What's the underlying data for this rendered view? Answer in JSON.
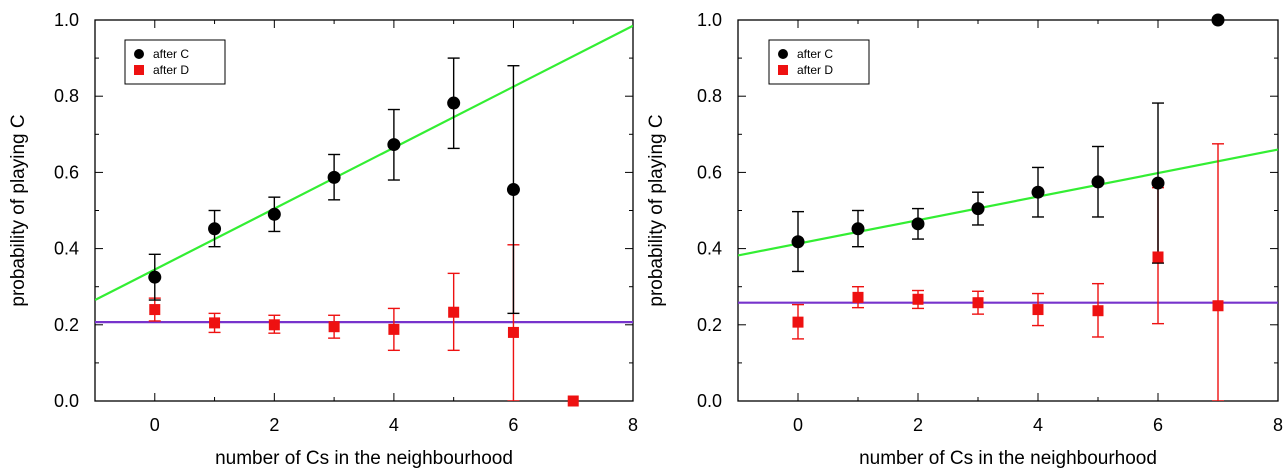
{
  "chart_data": [
    {
      "type": "scatter",
      "xlabel": "number of Cs in the neighbourhood",
      "ylabel": "probability of playing C",
      "xlim": [
        -1,
        8
      ],
      "ylim": [
        0,
        1
      ],
      "xticks": [
        "0",
        "2",
        "4",
        "6",
        "8"
      ],
      "yticks": [
        "0.0",
        "0.2",
        "0.4",
        "0.6",
        "0.8",
        "1.0"
      ],
      "legend_position": "top-left",
      "grid": false,
      "series": [
        {
          "name": "after C",
          "marker": "circle",
          "color": "#000000",
          "x": [
            0,
            1,
            2,
            3,
            4,
            5,
            6
          ],
          "y": [
            0.325,
            0.452,
            0.49,
            0.587,
            0.673,
            0.782,
            0.555
          ],
          "yerr_low": [
            0.265,
            0.405,
            0.445,
            0.528,
            0.58,
            0.663,
            0.23
          ],
          "yerr_high": [
            0.385,
            0.5,
            0.535,
            0.647,
            0.765,
            0.9,
            0.88
          ]
        },
        {
          "name": "after D",
          "marker": "square",
          "color": "#ee1111",
          "x": [
            0,
            1,
            2,
            3,
            4,
            5,
            6,
            7
          ],
          "y": [
            0.24,
            0.205,
            0.2,
            0.195,
            0.188,
            0.233,
            0.18,
            0.0
          ],
          "yerr_low": [
            0.21,
            0.18,
            0.178,
            0.165,
            0.133,
            0.133,
            0.0,
            null
          ],
          "yerr_high": [
            0.27,
            0.23,
            0.225,
            0.225,
            0.243,
            0.335,
            0.41,
            null
          ]
        }
      ],
      "fit_lines": [
        {
          "color": "#33ee33",
          "x": [
            -1,
            8
          ],
          "y": [
            0.265,
            0.985
          ]
        },
        {
          "color": "#7733cc",
          "x": [
            -1,
            8
          ],
          "y": [
            0.207,
            0.207
          ]
        }
      ]
    },
    {
      "type": "scatter",
      "xlabel": "number of Cs in the neighbourhood",
      "ylabel": "probability of playing C",
      "xlim": [
        -1,
        8
      ],
      "ylim": [
        0,
        1
      ],
      "xticks": [
        "0",
        "2",
        "4",
        "6",
        "8"
      ],
      "yticks": [
        "0.0",
        "0.2",
        "0.4",
        "0.6",
        "0.8",
        "1.0"
      ],
      "legend_position": "top-left",
      "grid": false,
      "series": [
        {
          "name": "after C",
          "marker": "circle",
          "color": "#000000",
          "x": [
            0,
            1,
            2,
            3,
            4,
            5,
            6,
            7
          ],
          "y": [
            0.418,
            0.452,
            0.465,
            0.505,
            0.548,
            0.575,
            0.572,
            1.0
          ],
          "yerr_low": [
            0.34,
            0.405,
            0.425,
            0.462,
            0.483,
            0.483,
            0.362,
            null
          ],
          "yerr_high": [
            0.497,
            0.5,
            0.505,
            0.548,
            0.613,
            0.668,
            0.782,
            null
          ]
        },
        {
          "name": "after D",
          "marker": "square",
          "color": "#ee1111",
          "x": [
            0,
            1,
            2,
            3,
            4,
            5,
            6,
            7
          ],
          "y": [
            0.207,
            0.272,
            0.267,
            0.258,
            0.24,
            0.237,
            0.378,
            0.25
          ],
          "yerr_low": [
            0.163,
            0.245,
            0.243,
            0.228,
            0.198,
            0.168,
            0.203,
            0.0
          ],
          "yerr_high": [
            0.253,
            0.3,
            0.29,
            0.288,
            0.282,
            0.308,
            0.56,
            0.675
          ]
        }
      ],
      "fit_lines": [
        {
          "color": "#33ee33",
          "x": [
            -1,
            8
          ],
          "y": [
            0.382,
            0.66
          ]
        },
        {
          "color": "#7733cc",
          "x": [
            -1,
            8
          ],
          "y": [
            0.258,
            0.258
          ]
        }
      ]
    }
  ]
}
